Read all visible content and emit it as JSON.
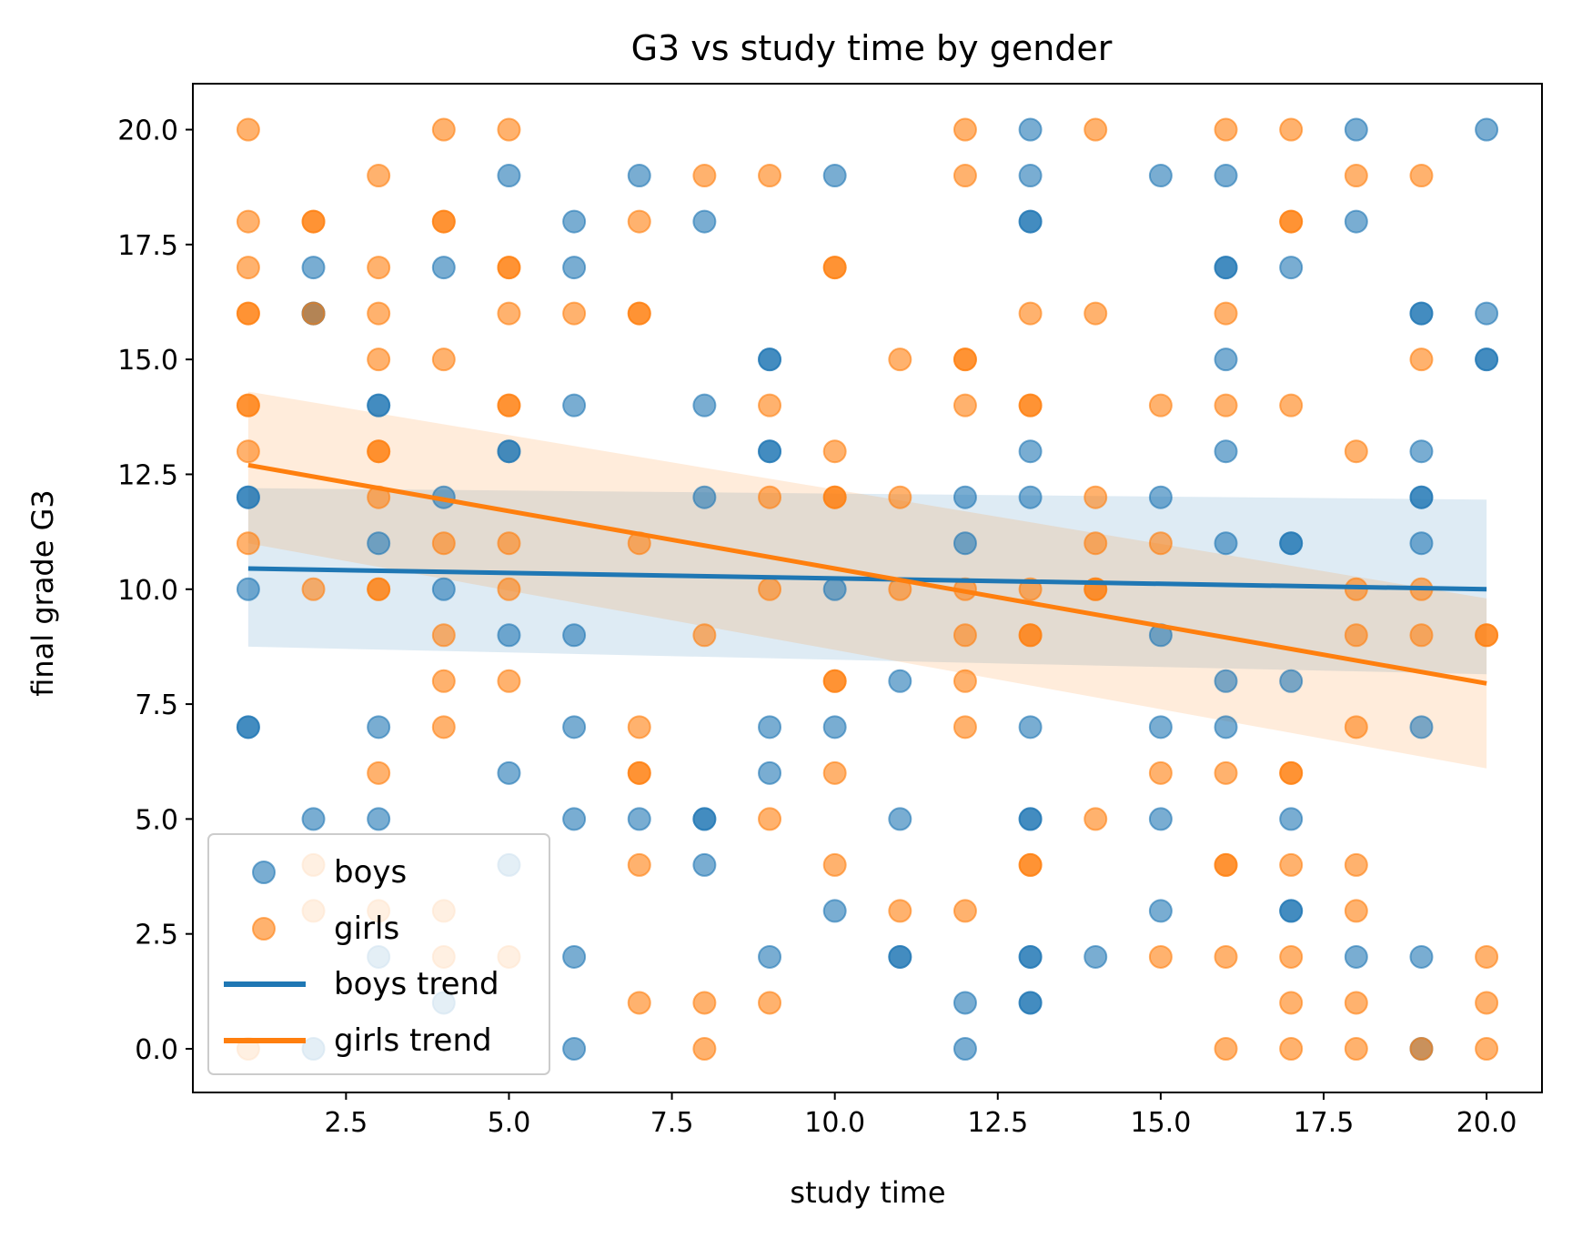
{
  "chart_data": {
    "type": "scatter",
    "title": "G3 vs study time by gender",
    "xlabel": "study time",
    "ylabel": "final grade G3",
    "xlim": [
      0.15,
      20.85
    ],
    "ylim": [
      -0.95,
      21.0
    ],
    "xticks": [
      2.5,
      5.0,
      7.5,
      10.0,
      12.5,
      15.0,
      17.5,
      20.0
    ],
    "xtick_labels": [
      "2.5",
      "5.0",
      "7.5",
      "10.0",
      "12.5",
      "15.0",
      "17.5",
      "20.0"
    ],
    "yticks": [
      0.0,
      2.5,
      5.0,
      7.5,
      10.0,
      12.5,
      15.0,
      17.5,
      20.0
    ],
    "ytick_labels": [
      "0.0",
      "2.5",
      "5.0",
      "7.5",
      "10.0",
      "12.5",
      "15.0",
      "17.5",
      "20.0"
    ],
    "grid": false,
    "legend_position": "lower-left",
    "legend": [
      "boys",
      "girls",
      "boys trend",
      "girls trend"
    ],
    "series": [
      {
        "name": "boys",
        "kind": "scatter",
        "color": "#1f77b4",
        "alpha": 0.6,
        "points": [
          [
            1,
            12
          ],
          [
            1,
            12
          ],
          [
            1,
            10
          ],
          [
            1,
            7
          ],
          [
            1,
            7
          ],
          [
            2,
            17
          ],
          [
            2,
            16
          ],
          [
            2,
            16
          ],
          [
            2,
            5
          ],
          [
            2,
            0
          ],
          [
            3,
            14
          ],
          [
            3,
            14
          ],
          [
            3,
            11
          ],
          [
            3,
            7
          ],
          [
            3,
            5
          ],
          [
            3,
            2
          ],
          [
            4,
            17
          ],
          [
            4,
            12
          ],
          [
            4,
            10
          ],
          [
            4,
            1
          ],
          [
            5,
            19
          ],
          [
            5,
            13
          ],
          [
            5,
            13
          ],
          [
            5,
            9
          ],
          [
            5,
            6
          ],
          [
            5,
            4
          ],
          [
            6,
            18
          ],
          [
            6,
            17
          ],
          [
            6,
            14
          ],
          [
            6,
            9
          ],
          [
            6,
            7
          ],
          [
            6,
            5
          ],
          [
            6,
            2
          ],
          [
            6,
            0
          ],
          [
            7,
            19
          ],
          [
            7,
            5
          ],
          [
            8,
            18
          ],
          [
            8,
            14
          ],
          [
            8,
            12
          ],
          [
            8,
            5
          ],
          [
            8,
            5
          ],
          [
            8,
            4
          ],
          [
            9,
            15
          ],
          [
            9,
            15
          ],
          [
            9,
            13
          ],
          [
            9,
            13
          ],
          [
            9,
            7
          ],
          [
            9,
            6
          ],
          [
            9,
            2
          ],
          [
            10,
            19
          ],
          [
            10,
            10
          ],
          [
            10,
            7
          ],
          [
            10,
            3
          ],
          [
            11,
            8
          ],
          [
            11,
            5
          ],
          [
            11,
            2
          ],
          [
            11,
            2
          ],
          [
            12,
            12
          ],
          [
            12,
            11
          ],
          [
            12,
            1
          ],
          [
            12,
            0
          ],
          [
            13,
            20
          ],
          [
            13,
            19
          ],
          [
            13,
            18
          ],
          [
            13,
            18
          ],
          [
            13,
            13
          ],
          [
            13,
            12
          ],
          [
            13,
            7
          ],
          [
            13,
            5
          ],
          [
            13,
            5
          ],
          [
            13,
            2
          ],
          [
            13,
            2
          ],
          [
            13,
            1
          ],
          [
            13,
            1
          ],
          [
            14,
            2
          ],
          [
            15,
            19
          ],
          [
            15,
            12
          ],
          [
            15,
            9
          ],
          [
            15,
            7
          ],
          [
            15,
            5
          ],
          [
            15,
            3
          ],
          [
            16,
            19
          ],
          [
            16,
            17
          ],
          [
            16,
            17
          ],
          [
            16,
            15
          ],
          [
            16,
            13
          ],
          [
            16,
            11
          ],
          [
            16,
            8
          ],
          [
            16,
            7
          ],
          [
            17,
            17
          ],
          [
            17,
            11
          ],
          [
            17,
            11
          ],
          [
            17,
            8
          ],
          [
            17,
            5
          ],
          [
            17,
            3
          ],
          [
            17,
            3
          ],
          [
            18,
            20
          ],
          [
            18,
            18
          ],
          [
            18,
            2
          ],
          [
            19,
            16
          ],
          [
            19,
            16
          ],
          [
            19,
            13
          ],
          [
            19,
            12
          ],
          [
            19,
            12
          ],
          [
            19,
            11
          ],
          [
            19,
            7
          ],
          [
            19,
            2
          ],
          [
            19,
            0
          ],
          [
            20,
            20
          ],
          [
            20,
            16
          ],
          [
            20,
            15
          ],
          [
            20,
            15
          ]
        ]
      },
      {
        "name": "girls",
        "kind": "scatter",
        "color": "#ff7f0e",
        "alpha": 0.6,
        "points": [
          [
            1,
            20
          ],
          [
            1,
            18
          ],
          [
            1,
            17
          ],
          [
            1,
            16
          ],
          [
            1,
            16
          ],
          [
            1,
            14
          ],
          [
            1,
            14
          ],
          [
            1,
            13
          ],
          [
            1,
            11
          ],
          [
            1,
            0
          ],
          [
            2,
            18
          ],
          [
            2,
            18
          ],
          [
            2,
            16
          ],
          [
            2,
            10
          ],
          [
            2,
            4
          ],
          [
            2,
            3
          ],
          [
            3,
            19
          ],
          [
            3,
            17
          ],
          [
            3,
            16
          ],
          [
            3,
            15
          ],
          [
            3,
            13
          ],
          [
            3,
            13
          ],
          [
            3,
            12
          ],
          [
            3,
            10
          ],
          [
            3,
            10
          ],
          [
            3,
            6
          ],
          [
            3,
            3
          ],
          [
            4,
            20
          ],
          [
            4,
            18
          ],
          [
            4,
            18
          ],
          [
            4,
            15
          ],
          [
            4,
            11
          ],
          [
            4,
            9
          ],
          [
            4,
            8
          ],
          [
            4,
            7
          ],
          [
            4,
            3
          ],
          [
            4,
            2
          ],
          [
            5,
            20
          ],
          [
            5,
            17
          ],
          [
            5,
            17
          ],
          [
            5,
            16
          ],
          [
            5,
            14
          ],
          [
            5,
            14
          ],
          [
            5,
            11
          ],
          [
            5,
            10
          ],
          [
            5,
            8
          ],
          [
            5,
            2
          ],
          [
            6,
            16
          ],
          [
            7,
            18
          ],
          [
            7,
            16
          ],
          [
            7,
            16
          ],
          [
            7,
            11
          ],
          [
            7,
            7
          ],
          [
            7,
            6
          ],
          [
            7,
            6
          ],
          [
            7,
            4
          ],
          [
            7,
            1
          ],
          [
            8,
            19
          ],
          [
            8,
            9
          ],
          [
            8,
            1
          ],
          [
            8,
            0
          ],
          [
            9,
            19
          ],
          [
            9,
            14
          ],
          [
            9,
            12
          ],
          [
            9,
            10
          ],
          [
            9,
            5
          ],
          [
            9,
            1
          ],
          [
            10,
            17
          ],
          [
            10,
            17
          ],
          [
            10,
            13
          ],
          [
            10,
            12
          ],
          [
            10,
            12
          ],
          [
            10,
            8
          ],
          [
            10,
            8
          ],
          [
            10,
            6
          ],
          [
            10,
            4
          ],
          [
            11,
            15
          ],
          [
            11,
            12
          ],
          [
            11,
            10
          ],
          [
            11,
            3
          ],
          [
            12,
            20
          ],
          [
            12,
            19
          ],
          [
            12,
            15
          ],
          [
            12,
            15
          ],
          [
            12,
            14
          ],
          [
            12,
            10
          ],
          [
            12,
            9
          ],
          [
            12,
            8
          ],
          [
            12,
            7
          ],
          [
            12,
            3
          ],
          [
            13,
            16
          ],
          [
            13,
            14
          ],
          [
            13,
            14
          ],
          [
            13,
            10
          ],
          [
            13,
            9
          ],
          [
            13,
            9
          ],
          [
            13,
            4
          ],
          [
            13,
            4
          ],
          [
            14,
            20
          ],
          [
            14,
            16
          ],
          [
            14,
            12
          ],
          [
            14,
            11
          ],
          [
            14,
            10
          ],
          [
            14,
            10
          ],
          [
            14,
            5
          ],
          [
            15,
            14
          ],
          [
            15,
            11
          ],
          [
            15,
            6
          ],
          [
            15,
            2
          ],
          [
            16,
            20
          ],
          [
            16,
            16
          ],
          [
            16,
            14
          ],
          [
            16,
            6
          ],
          [
            16,
            4
          ],
          [
            16,
            4
          ],
          [
            16,
            2
          ],
          [
            16,
            0
          ],
          [
            17,
            20
          ],
          [
            17,
            18
          ],
          [
            17,
            18
          ],
          [
            17,
            14
          ],
          [
            17,
            6
          ],
          [
            17,
            6
          ],
          [
            17,
            4
          ],
          [
            17,
            2
          ],
          [
            17,
            1
          ],
          [
            17,
            0
          ],
          [
            18,
            19
          ],
          [
            18,
            13
          ],
          [
            18,
            10
          ],
          [
            18,
            9
          ],
          [
            18,
            7
          ],
          [
            18,
            4
          ],
          [
            18,
            3
          ],
          [
            18,
            1
          ],
          [
            18,
            0
          ],
          [
            19,
            19
          ],
          [
            19,
            15
          ],
          [
            19,
            10
          ],
          [
            19,
            9
          ],
          [
            19,
            0
          ],
          [
            20,
            9
          ],
          [
            20,
            9
          ],
          [
            20,
            2
          ],
          [
            20,
            1
          ],
          [
            20,
            0
          ]
        ]
      },
      {
        "name": "boys trend",
        "kind": "line",
        "color": "#1f77b4",
        "x": [
          1,
          20
        ],
        "y": [
          10.45,
          10.0
        ],
        "ci_upper": [
          12.2,
          11.95
        ],
        "ci_lower": [
          8.75,
          8.15
        ]
      },
      {
        "name": "girls trend",
        "kind": "line",
        "color": "#ff7f0e",
        "x": [
          1,
          20
        ],
        "y": [
          12.7,
          7.95
        ],
        "ci_upper": [
          14.3,
          9.8
        ],
        "ci_lower": [
          11.0,
          6.1
        ]
      }
    ]
  }
}
